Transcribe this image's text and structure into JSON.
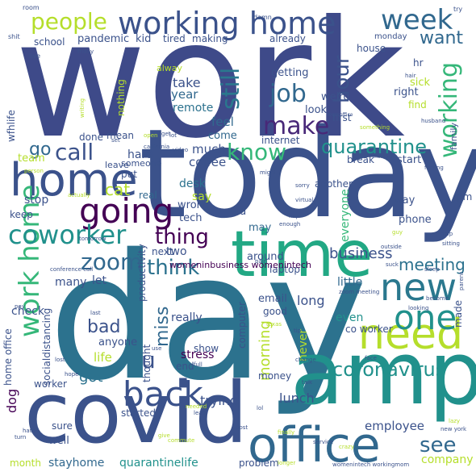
{
  "palette": {
    "background": "#ffffff",
    "deep_purple": "#440154",
    "indigo": "#3b528b",
    "blue": "#31688e",
    "teal": "#21918c",
    "green_teal": "#35b779",
    "green": "#6ece58",
    "yellow_green": "#b5de2b",
    "yellow": "#fde725"
  },
  "words": [
    {
      "text": "work",
      "color": "#3e4a89"
    },
    {
      "text": "day",
      "color": "#2c728e"
    },
    {
      "text": "today",
      "color": "#3b528b"
    },
    {
      "text": "amp",
      "color": "#21918c"
    },
    {
      "text": "covid",
      "color": "#3b528b"
    },
    {
      "text": "time",
      "color": "#22a884"
    },
    {
      "text": "home",
      "color": "#3b528b"
    },
    {
      "text": "office",
      "color": "#31688e"
    },
    {
      "text": "working home",
      "color": "#3b528b"
    },
    {
      "text": "need",
      "color": "#b5de2b"
    },
    {
      "text": "new",
      "color": "#2a788e"
    },
    {
      "text": "one",
      "color": "#21918c"
    },
    {
      "text": "going",
      "color": "#440154"
    },
    {
      "text": "back",
      "color": "#3b528b"
    },
    {
      "text": "week",
      "color": "#31688e"
    },
    {
      "text": "people",
      "color": "#b5de2b"
    },
    {
      "text": "work home",
      "color": "#35b779"
    },
    {
      "text": "coworker",
      "color": "#21918c"
    },
    {
      "text": "call",
      "color": "#3b528b"
    },
    {
      "text": "know",
      "color": "#35b779"
    },
    {
      "text": "make",
      "color": "#482878"
    },
    {
      "text": "job",
      "color": "#31688e"
    },
    {
      "text": "still",
      "color": "#2a788e"
    },
    {
      "text": "working",
      "color": "#35b779"
    },
    {
      "text": "hour",
      "color": "#3b528b"
    },
    {
      "text": "quarantine",
      "color": "#21918c"
    },
    {
      "text": "thing",
      "color": "#440154"
    },
    {
      "text": "think",
      "color": "#2c728e"
    },
    {
      "text": "zoom",
      "color": "#31688e"
    },
    {
      "text": "coronavirus",
      "color": "#21918c"
    },
    {
      "text": "see",
      "color": "#31688e"
    },
    {
      "text": "u",
      "color": "#3b528b"
    },
    {
      "text": "bad",
      "color": "#3b528b"
    },
    {
      "text": "miss",
      "color": "#31688e"
    },
    {
      "text": "want",
      "color": "#31688e"
    },
    {
      "text": "go",
      "color": "#31688e"
    },
    {
      "text": "cat",
      "color": "#b5de2b"
    },
    {
      "text": "meeting",
      "color": "#2c728e"
    },
    {
      "text": "business",
      "color": "#3b528b"
    },
    {
      "text": "morning",
      "color": "#b5de2b"
    },
    {
      "text": "got",
      "color": "#2c728e"
    },
    {
      "text": "dog",
      "color": "#440154"
    },
    {
      "text": "lunch",
      "color": "#3b528b"
    },
    {
      "text": "employee",
      "color": "#3b528b"
    },
    {
      "text": "quarantinelife",
      "color": "#21918c"
    },
    {
      "text": "stayhome",
      "color": "#31688e"
    },
    {
      "text": "company",
      "color": "#b5de2b"
    },
    {
      "text": "everyone",
      "color": "#35b779"
    },
    {
      "text": "take",
      "color": "#3b528b"
    },
    {
      "text": "year",
      "color": "#31688e"
    },
    {
      "text": "remote",
      "color": "#2c728e"
    },
    {
      "text": "feel",
      "color": "#31688e"
    },
    {
      "text": "come",
      "color": "#31688e"
    },
    {
      "text": "much",
      "color": "#3b528b"
    },
    {
      "text": "coffee",
      "color": "#3b528b"
    },
    {
      "text": "hard",
      "color": "#3b528b"
    },
    {
      "text": "desk",
      "color": "#2c728e"
    },
    {
      "text": "say",
      "color": "#b5de2b"
    },
    {
      "text": "tech",
      "color": "#3b528b"
    },
    {
      "text": "via",
      "color": "#3b528b"
    },
    {
      "text": "wrong",
      "color": "#3b528b"
    },
    {
      "text": "may",
      "color": "#31688e"
    },
    {
      "text": "real",
      "color": "#31688e"
    },
    {
      "text": "around",
      "color": "#3b528b"
    },
    {
      "text": "laptop",
      "color": "#3b528b"
    },
    {
      "text": "email",
      "color": "#3b528b"
    },
    {
      "text": "next",
      "color": "#3b528b"
    },
    {
      "text": "two",
      "color": "#3b528b"
    },
    {
      "text": "let",
      "color": "#3b528b"
    },
    {
      "text": "many",
      "color": "#3b528b"
    },
    {
      "text": "little",
      "color": "#31688e"
    },
    {
      "text": "long",
      "color": "#3b528b"
    },
    {
      "text": "good",
      "color": "#3b528b"
    },
    {
      "text": "really",
      "color": "#3b528b"
    },
    {
      "text": "even",
      "color": "#21918c"
    },
    {
      "text": "co worker",
      "color": "#3b528b"
    },
    {
      "text": "never",
      "color": "#b5de2b"
    },
    {
      "text": "made",
      "color": "#3b528b"
    },
    {
      "text": "check",
      "color": "#3b528b"
    },
    {
      "text": "anyone",
      "color": "#3b528b"
    },
    {
      "text": "life",
      "color": "#b5de2b"
    },
    {
      "text": "stress",
      "color": "#440154"
    },
    {
      "text": "show",
      "color": "#3b528b"
    },
    {
      "text": "end",
      "color": "#3b528b"
    },
    {
      "text": "trying",
      "color": "#3b528b"
    },
    {
      "text": "money",
      "color": "#3b528b"
    },
    {
      "text": "computer",
      "color": "#3b528b"
    },
    {
      "text": "thought",
      "color": "#3b528b"
    },
    {
      "text": "productivity",
      "color": "#3b528b"
    },
    {
      "text": "womeninbusiness womenintech",
      "color": "#440154"
    },
    {
      "text": "socialdistancing",
      "color": "#3b528b"
    },
    {
      "text": "home office",
      "color": "#3b528b"
    },
    {
      "text": "worker",
      "color": "#3b528b"
    },
    {
      "text": "started",
      "color": "#3b528b"
    },
    {
      "text": "sure",
      "color": "#3b528b"
    },
    {
      "text": "well",
      "color": "#3b528b"
    },
    {
      "text": "month",
      "color": "#b5de2b"
    },
    {
      "text": "problem",
      "color": "#3b528b"
    },
    {
      "text": "pandemic",
      "color": "#3b528b"
    },
    {
      "text": "kid",
      "color": "#3b528b"
    },
    {
      "text": "tired",
      "color": "#3b528b"
    },
    {
      "text": "making",
      "color": "#3b528b"
    },
    {
      "text": "already",
      "color": "#3b528b"
    },
    {
      "text": "school",
      "color": "#3b528b"
    },
    {
      "text": "house",
      "color": "#3b528b"
    },
    {
      "text": "monday",
      "color": "#3b528b"
    },
    {
      "text": "hr",
      "color": "#3b528b"
    },
    {
      "text": "sick",
      "color": "#b5de2b"
    },
    {
      "text": "right",
      "color": "#3b528b"
    },
    {
      "text": "getting",
      "color": "#3b528b"
    },
    {
      "text": "weird",
      "color": "#3b528b"
    },
    {
      "text": "look",
      "color": "#3b528b"
    },
    {
      "text": "find",
      "color": "#b5de2b"
    },
    {
      "text": "first",
      "color": "#3b528b"
    },
    {
      "text": "internet",
      "color": "#3b528b"
    },
    {
      "text": "break",
      "color": "#3b528b"
    },
    {
      "text": "start",
      "color": "#3b528b"
    },
    {
      "text": "another",
      "color": "#3b528b"
    },
    {
      "text": "way",
      "color": "#3b528b"
    },
    {
      "text": "pm",
      "color": "#3b528b"
    },
    {
      "text": "phone",
      "color": "#3b528b"
    },
    {
      "text": "family",
      "color": "#3b528b"
    },
    {
      "text": "wfhlife",
      "color": "#3b528b"
    },
    {
      "text": "nothing",
      "color": "#b5de2b"
    },
    {
      "text": "alway",
      "color": "#b5de2b"
    },
    {
      "text": "done",
      "color": "#3b528b"
    },
    {
      "text": "mean",
      "color": "#3b528b"
    },
    {
      "text": "team",
      "color": "#b5de2b"
    },
    {
      "text": "someone",
      "color": "#3b528b"
    },
    {
      "text": "leave",
      "color": "#3b528b"
    },
    {
      "text": "put",
      "color": "#3b528b"
    },
    {
      "text": "stop",
      "color": "#3b528b"
    },
    {
      "text": "keep",
      "color": "#3b528b"
    },
    {
      "text": "small",
      "words": [
        "room",
        "try",
        "shit",
        "damn",
        "live",
        "friday",
        "writing",
        "open",
        "lot",
        "california",
        "video",
        "something",
        "nap",
        "sorry",
        "virtual",
        "enough",
        "help",
        "tomorrow",
        "guy",
        "sitting",
        "outside",
        "sleep",
        "suck",
        "parent",
        "conference call",
        "pain",
        "zoom meeting",
        "become",
        "looking",
        "texas",
        "tip",
        "change",
        "face",
        "lost",
        "give",
        "pay",
        "talk",
        "last",
        "set",
        "might",
        "hope",
        "service",
        "crazy",
        "lazy",
        "new york",
        "full",
        "use",
        "hate",
        "turn",
        "finally",
        "least",
        "commute",
        "needed",
        "longer",
        "womenintech workingmom",
        "post",
        "lol",
        "person",
        "actually",
        "feeling",
        "hair",
        "husband",
        "homeoffice",
        "moment",
        "get"
      ]
    }
  ]
}
